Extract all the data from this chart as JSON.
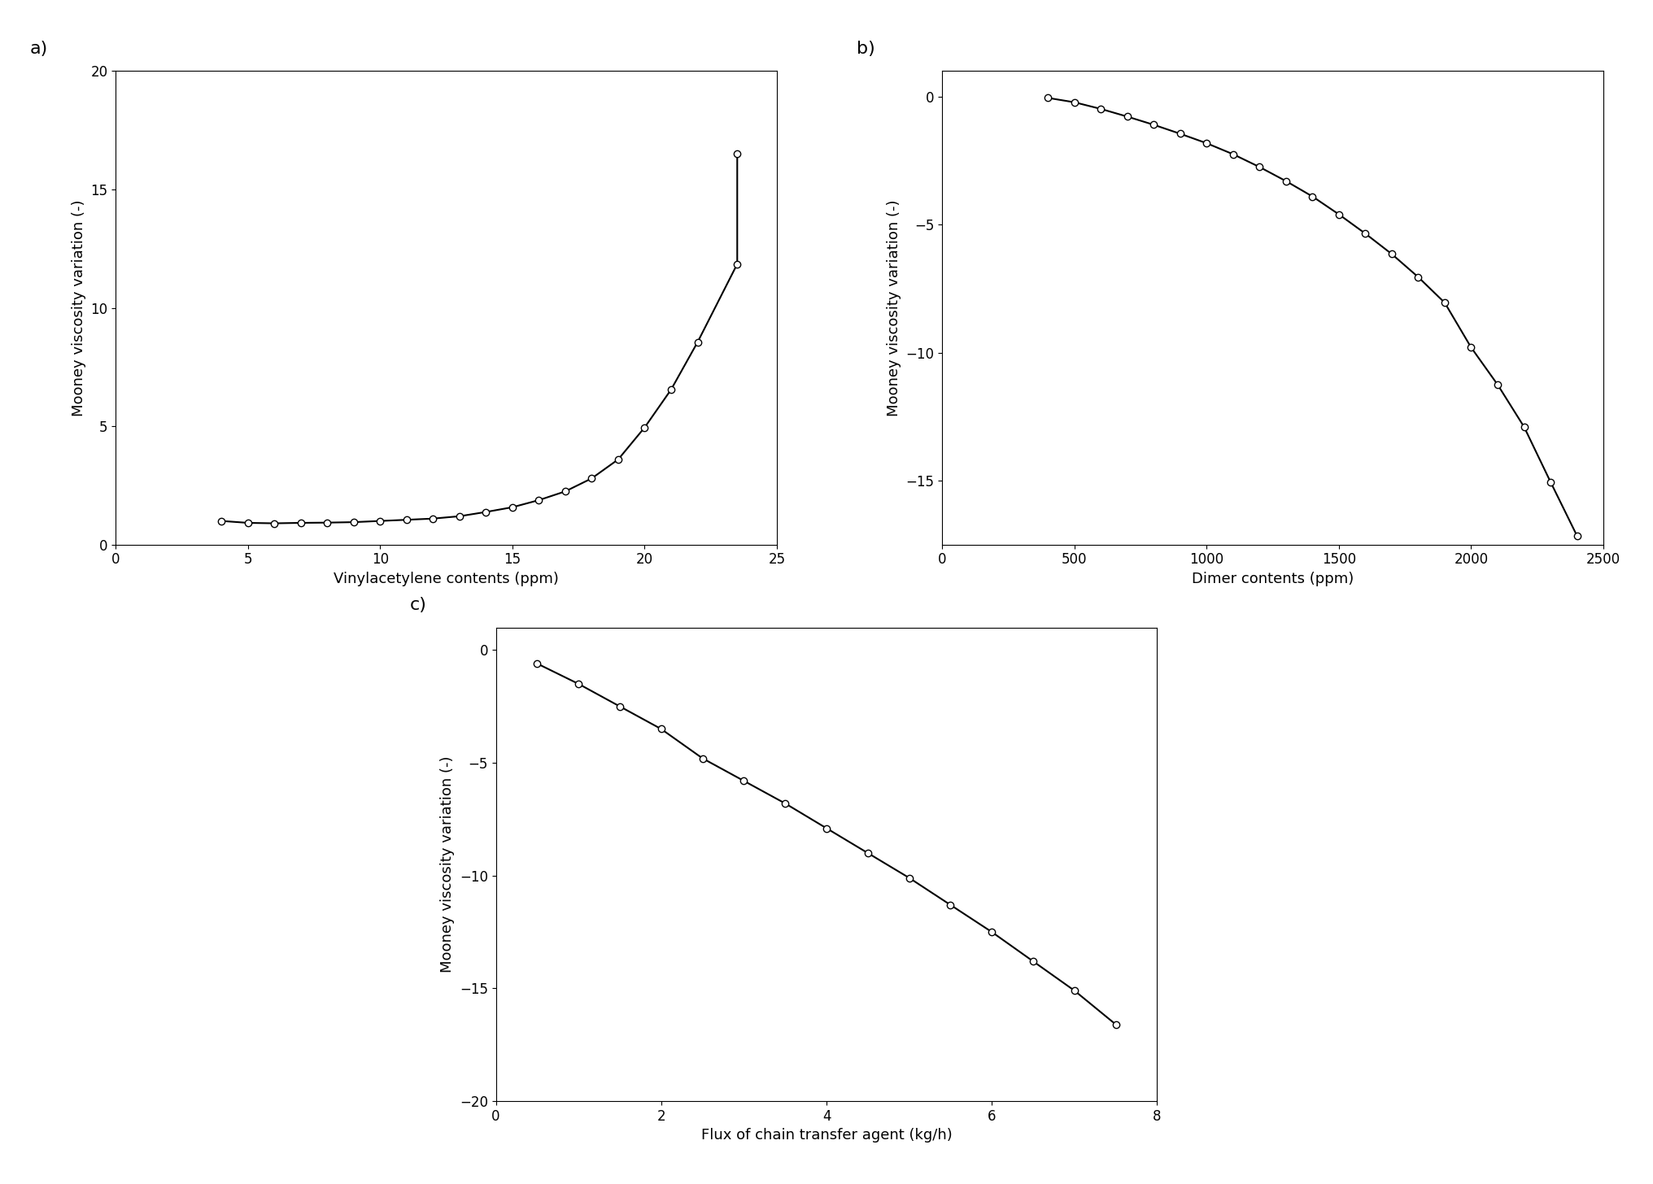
{
  "plot_a": {
    "x": [
      4,
      5,
      6,
      7,
      8,
      9,
      10,
      11,
      12,
      13,
      14,
      15,
      16,
      17,
      18,
      19,
      20,
      21,
      22,
      23.5,
      23.5
    ],
    "y": [
      1.0,
      0.92,
      0.9,
      0.92,
      0.93,
      0.95,
      1.0,
      1.05,
      1.1,
      1.2,
      1.38,
      1.58,
      1.88,
      2.25,
      2.8,
      3.6,
      4.95,
      6.55,
      8.55,
      11.85,
      16.5
    ],
    "xlabel": "Vinylacetylene contents (ppm)",
    "ylabel": "Mooney viscosity variation (-)",
    "xlim": [
      0,
      25
    ],
    "ylim": [
      0,
      20
    ],
    "xticks": [
      0,
      5,
      10,
      15,
      20,
      25
    ],
    "yticks": [
      0,
      5,
      10,
      15,
      20
    ],
    "label": "a)"
  },
  "plot_b": {
    "x": [
      400,
      500,
      600,
      700,
      800,
      900,
      1000,
      1100,
      1200,
      1300,
      1400,
      1500,
      1600,
      1700,
      1800,
      1900,
      2000,
      2100,
      2200,
      2300,
      2400
    ],
    "y": [
      -0.05,
      -0.22,
      -0.48,
      -0.78,
      -1.1,
      -1.45,
      -1.82,
      -2.25,
      -2.75,
      -3.3,
      -3.9,
      -4.6,
      -5.35,
      -6.15,
      -7.05,
      -8.05,
      -9.8,
      -11.25,
      -12.9,
      -15.05,
      -17.15
    ],
    "xlabel": "Dimer contents (ppm)",
    "ylabel": "Mooney viscosity variation (-)",
    "xlim": [
      0,
      2500
    ],
    "ylim": [
      -17.5,
      1
    ],
    "xticks": [
      0,
      500,
      1000,
      1500,
      2000,
      2500
    ],
    "yticks": [
      0,
      -5,
      -10,
      -15
    ],
    "label": "b)"
  },
  "plot_c": {
    "x": [
      0.5,
      1.0,
      1.5,
      2.0,
      2.5,
      3.0,
      3.5,
      4.0,
      4.5,
      5.0,
      5.5,
      6.0,
      6.5,
      7.0,
      7.5
    ],
    "y": [
      -0.6,
      -1.5,
      -2.5,
      -3.5,
      -4.8,
      -5.8,
      -6.8,
      -7.9,
      -9.0,
      -10.1,
      -11.3,
      -12.5,
      -13.8,
      -15.1,
      -16.6
    ],
    "xlabel": "Flux of chain transfer agent (kg/h)",
    "ylabel": "Mooney viscosity variation (-)",
    "xlim": [
      0,
      8
    ],
    "ylim": [
      -20,
      1
    ],
    "xticks": [
      0,
      2,
      4,
      6,
      8
    ],
    "yticks": [
      0,
      -5,
      -10,
      -15,
      -20
    ],
    "label": "c)"
  },
  "line_color": "#000000",
  "marker": "o",
  "marker_facecolor": "white",
  "marker_edgecolor": "#000000",
  "marker_size": 6,
  "linewidth": 1.5,
  "fontsize_label": 13,
  "fontsize_tick": 12,
  "fontsize_sublabel": 16,
  "background_color": "#ffffff"
}
